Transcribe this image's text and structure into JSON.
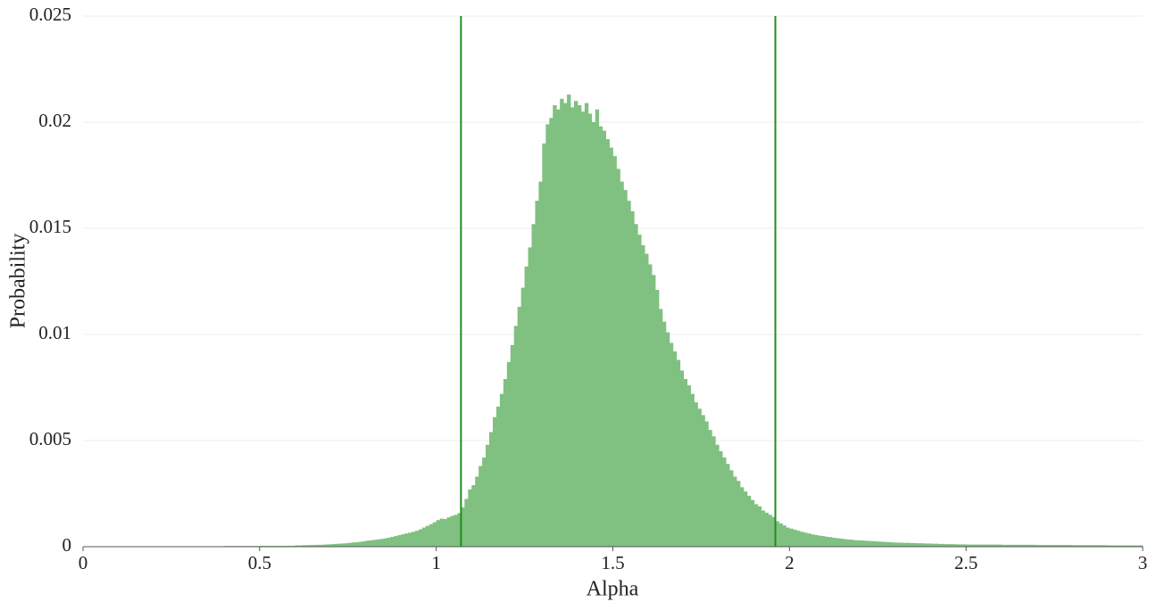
{
  "chart_data": {
    "type": "histogram",
    "x_label": "Alpha",
    "y_label": "Probability",
    "xlim": [
      0,
      3
    ],
    "ylim": [
      0,
      0.025
    ],
    "xticks": [
      0,
      0.5,
      1,
      1.5,
      2,
      2.5,
      3
    ],
    "yticks": [
      0,
      0.005,
      0.01,
      0.015,
      0.02,
      0.025
    ],
    "grid": true,
    "color": "#80c080",
    "line_color": "#1f8f1f",
    "vlines": [
      1.07,
      1.96
    ],
    "bins": [
      0,
      0.01,
      0.02,
      0.03,
      0.04,
      0.05,
      0.06,
      0.07,
      0.08,
      0.09,
      0.1,
      0.11,
      0.12,
      0.13,
      0.14,
      0.15,
      0.16,
      0.17,
      0.18,
      0.19,
      0.2,
      0.21,
      0.22,
      0.23,
      0.24,
      0.25,
      0.26,
      0.27,
      0.28,
      0.29,
      0.3,
      0.31,
      0.32,
      0.33,
      0.34,
      0.35,
      0.36,
      0.37,
      0.38,
      0.39,
      0.4,
      0.41,
      0.42,
      0.43,
      0.44,
      0.45,
      0.46,
      0.47,
      0.48,
      0.49,
      0.5,
      0.51,
      0.52,
      0.53,
      0.54,
      0.55,
      0.56,
      0.57,
      0.58,
      0.59,
      0.6,
      0.61,
      0.62,
      0.63,
      0.64,
      0.65,
      0.66,
      0.67,
      0.68,
      0.69,
      0.7,
      0.71,
      0.72,
      0.73,
      0.74,
      0.75,
      0.76,
      0.77,
      0.78,
      0.79,
      0.8,
      0.81,
      0.82,
      0.83,
      0.84,
      0.85,
      0.86,
      0.87,
      0.88,
      0.89,
      0.9,
      0.91,
      0.92,
      0.93,
      0.94,
      0.95,
      0.96,
      0.97,
      0.98,
      0.99,
      1,
      1.01,
      1.02,
      1.03,
      1.04,
      1.05,
      1.06,
      1.07,
      1.08,
      1.09,
      1.1,
      1.11,
      1.12,
      1.13,
      1.14,
      1.15,
      1.16,
      1.17,
      1.18,
      1.19,
      1.2,
      1.21,
      1.22,
      1.23,
      1.24,
      1.25,
      1.26,
      1.27,
      1.28,
      1.29,
      1.3,
      1.31,
      1.32,
      1.33,
      1.34,
      1.35,
      1.36,
      1.37,
      1.38,
      1.39,
      1.4,
      1.41,
      1.42,
      1.43,
      1.44,
      1.45,
      1.46,
      1.47,
      1.48,
      1.49,
      1.5,
      1.51,
      1.52,
      1.53,
      1.54,
      1.55,
      1.56,
      1.57,
      1.58,
      1.59,
      1.6,
      1.61,
      1.62,
      1.63,
      1.64,
      1.65,
      1.66,
      1.67,
      1.68,
      1.69,
      1.7,
      1.71,
      1.72,
      1.73,
      1.74,
      1.75,
      1.76,
      1.77,
      1.78,
      1.79,
      1.8,
      1.81,
      1.82,
      1.83,
      1.84,
      1.85,
      1.86,
      1.87,
      1.88,
      1.89,
      1.9,
      1.91,
      1.92,
      1.93,
      1.94,
      1.95,
      1.96,
      1.97,
      1.98,
      1.99,
      2,
      2.01,
      2.02,
      2.03,
      2.04,
      2.05,
      2.06,
      2.07,
      2.08,
      2.09,
      2.1,
      2.11,
      2.12,
      2.13,
      2.14,
      2.15,
      2.16,
      2.17,
      2.18,
      2.19,
      2.2,
      2.21,
      2.22,
      2.23,
      2.24,
      2.25,
      2.26,
      2.27,
      2.28,
      2.29,
      2.3,
      2.31,
      2.32,
      2.33,
      2.34,
      2.35,
      2.36,
      2.37,
      2.38,
      2.39,
      2.4,
      2.41,
      2.42,
      2.43,
      2.44,
      2.45,
      2.46,
      2.47,
      2.48,
      2.49,
      2.5,
      2.51,
      2.52,
      2.53,
      2.54,
      2.55,
      2.56,
      2.57,
      2.58,
      2.59,
      2.6,
      2.61,
      2.62,
      2.63,
      2.64,
      2.65,
      2.66,
      2.67,
      2.68,
      2.69,
      2.7,
      2.71,
      2.72,
      2.73,
      2.74,
      2.75,
      2.76,
      2.77,
      2.78,
      2.79,
      2.8,
      2.81,
      2.82,
      2.83,
      2.84,
      2.85,
      2.86,
      2.87,
      2.88,
      2.89,
      2.9,
      2.91,
      2.92,
      2.93,
      2.94,
      2.95,
      2.96,
      2.97,
      2.98,
      2.99,
      3
    ],
    "counts": [
      1e-05,
      1e-05,
      1e-05,
      1e-05,
      1e-05,
      1e-05,
      1e-05,
      1e-05,
      1e-05,
      1e-05,
      1e-05,
      1e-05,
      1e-05,
      1e-05,
      1e-05,
      1e-05,
      1e-05,
      1e-05,
      1e-05,
      1e-05,
      2e-05,
      2e-05,
      2e-05,
      2e-05,
      2e-05,
      2e-05,
      2e-05,
      2e-05,
      2e-05,
      2e-05,
      2e-05,
      2e-05,
      2e-05,
      2e-05,
      2e-05,
      2e-05,
      2e-05,
      2e-05,
      2e-05,
      2e-05,
      3e-05,
      3e-05,
      3e-05,
      3e-05,
      3e-05,
      3e-05,
      3e-05,
      3e-05,
      3e-05,
      3e-05,
      4e-05,
      4e-05,
      4e-05,
      4e-05,
      4e-05,
      4e-05,
      4e-05,
      4e-05,
      4e-05,
      4e-05,
      6e-05,
      6e-05,
      7e-05,
      7e-05,
      8e-05,
      8e-05,
      9e-05,
      9e-05,
      0.0001,
      0.00011,
      0.00012,
      0.00013,
      0.00014,
      0.00015,
      0.00016,
      0.00018,
      0.0002,
      0.00021,
      0.00023,
      0.00025,
      0.00028,
      0.0003,
      0.00032,
      0.00034,
      0.00036,
      0.00039,
      0.00042,
      0.00046,
      0.0005,
      0.00054,
      0.00058,
      0.00062,
      0.00066,
      0.0007,
      0.00075,
      0.00082,
      0.0009,
      0.00098,
      0.00106,
      0.00115,
      0.00125,
      0.00132,
      0.0013,
      0.00138,
      0.00145,
      0.0015,
      0.00158,
      0.00185,
      0.00225,
      0.0027,
      0.0029,
      0.0033,
      0.0038,
      0.0042,
      0.0048,
      0.0054,
      0.0061,
      0.0066,
      0.0072,
      0.0079,
      0.0087,
      0.0095,
      0.0104,
      0.0113,
      0.0122,
      0.0132,
      0.0141,
      0.0152,
      0.0163,
      0.0172,
      0.019,
      0.0199,
      0.0202,
      0.0208,
      0.0206,
      0.0211,
      0.0209,
      0.0213,
      0.0207,
      0.021,
      0.0208,
      0.0205,
      0.0209,
      0.0204,
      0.02,
      0.0206,
      0.0198,
      0.0196,
      0.0192,
      0.0188,
      0.0184,
      0.0178,
      0.0172,
      0.0168,
      0.0163,
      0.0158,
      0.0152,
      0.0147,
      0.0142,
      0.0138,
      0.0133,
      0.0128,
      0.0121,
      0.0112,
      0.0106,
      0.0101,
      0.0096,
      0.0092,
      0.0088,
      0.0083,
      0.0079,
      0.0076,
      0.0072,
      0.0068,
      0.0065,
      0.0062,
      0.0059,
      0.0055,
      0.0052,
      0.0048,
      0.0045,
      0.0042,
      0.0039,
      0.0036,
      0.0033,
      0.0031,
      0.0028,
      0.0026,
      0.0024,
      0.0022,
      0.002,
      0.0019,
      0.0017,
      0.0016,
      0.0015,
      0.0014,
      0.0012,
      0.0011,
      0.001,
      0.0009,
      0.00085,
      0.0008,
      0.00075,
      0.0007,
      0.00066,
      0.00062,
      0.00058,
      0.00055,
      0.00052,
      0.0005,
      0.00047,
      0.00045,
      0.00042,
      0.0004,
      0.00038,
      0.00036,
      0.00034,
      0.00033,
      0.00031,
      0.0003,
      0.00029,
      0.00028,
      0.00027,
      0.00026,
      0.00025,
      0.00024,
      0.00023,
      0.00022,
      0.00021,
      0.0002,
      0.00019,
      0.00019,
      0.00018,
      0.00018,
      0.00017,
      0.00017,
      0.00016,
      0.00016,
      0.00015,
      0.00015,
      0.00014,
      0.00014,
      0.00013,
      0.00013,
      0.00012,
      0.00012,
      0.00012,
      0.00011,
      0.00011,
      0.00011,
      0.0001,
      0.0001,
      0.0001,
      0.0001,
      0.0001,
      0.0001,
      0.0001,
      0.0001,
      0.0001,
      0.0001,
      9e-05,
      9e-05,
      9e-05,
      9e-05,
      9e-05,
      9e-05,
      9e-05,
      9e-05,
      9e-05,
      9e-05,
      8e-05,
      8e-05,
      8e-05,
      8e-05,
      8e-05,
      8e-05,
      8e-05,
      8e-05,
      8e-05,
      8e-05,
      7e-05,
      7e-05,
      7e-05,
      7e-05,
      7e-05,
      7e-05,
      7e-05,
      7e-05,
      7e-05,
      7e-05,
      6e-05,
      6e-05,
      6e-05,
      6e-05,
      6e-05,
      6e-05,
      6e-05,
      6e-05,
      6e-05,
      6e-05
    ]
  }
}
